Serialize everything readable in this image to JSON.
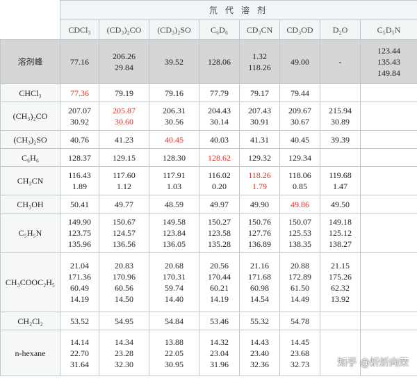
{
  "banner": "氘 代 溶 剂",
  "columns": [
    "CDCl₃",
    "(CD₃)₂CO",
    "(CD₃)₂SO",
    "C₆D₆",
    "CD₃CN",
    "CD₃OD",
    "D₂O",
    "C₅D₅N"
  ],
  "peak_row": {
    "label": "溶剂峰",
    "cells": [
      [
        "77.16"
      ],
      [
        "206.26",
        "29.84"
      ],
      [
        "39.52"
      ],
      [
        "128.06"
      ],
      [
        "1.32",
        "118.26"
      ],
      [
        "49.00"
      ],
      [
        "-"
      ],
      [
        "123.44",
        "135.43",
        "149.84"
      ]
    ]
  },
  "rows": [
    {
      "label": "CHCl₃",
      "self": 0,
      "cells": [
        [
          "77.36"
        ],
        [
          "79.19"
        ],
        [
          "79.16"
        ],
        [
          "77.79"
        ],
        [
          "79.17"
        ],
        [
          "79.44"
        ],
        [],
        []
      ]
    },
    {
      "label": "(CH₃)₂CO",
      "self": 1,
      "cells": [
        [
          "207.07",
          "30.92"
        ],
        [
          "205.87",
          "30.60"
        ],
        [
          "206.31",
          "30.56"
        ],
        [
          "204.43",
          "30.14"
        ],
        [
          "207.43",
          "30.91"
        ],
        [
          "209.67",
          "30.67"
        ],
        [
          "215.94",
          "30.89"
        ],
        []
      ]
    },
    {
      "label": "(CH₃)₂SO",
      "self": 2,
      "cells": [
        [
          "40.76"
        ],
        [
          "41.23"
        ],
        [
          "40.45"
        ],
        [
          "40.03"
        ],
        [
          "41.31"
        ],
        [
          "40.45"
        ],
        [
          "39.39"
        ],
        []
      ]
    },
    {
      "label": "C₆H₆",
      "self": 3,
      "cells": [
        [
          "128.37"
        ],
        [
          "129.15"
        ],
        [
          "128.30"
        ],
        [
          "128.62"
        ],
        [
          "129.32"
        ],
        [
          "129.34"
        ],
        [],
        []
      ]
    },
    {
      "label": "CH₃CN",
      "self": 4,
      "cells": [
        [
          "116.43",
          "1.89"
        ],
        [
          "117.60",
          "1.12"
        ],
        [
          "117.91",
          "1.03"
        ],
        [
          "116.02",
          "0.20"
        ],
        [
          "118.26",
          "1.79"
        ],
        [
          "118.06",
          "0.85"
        ],
        [
          "119.68",
          "1.47"
        ],
        []
      ]
    },
    {
      "label": "CH₃OH",
      "self": 5,
      "cells": [
        [
          "50.41"
        ],
        [
          "49.77"
        ],
        [
          "48.59"
        ],
        [
          "49.97"
        ],
        [
          "49.90"
        ],
        [
          "49.86"
        ],
        [
          "49.50"
        ],
        []
      ]
    },
    {
      "label": "C₅H₅N",
      "self": -1,
      "cells": [
        [
          "149.90",
          "123.75",
          "135.96"
        ],
        [
          "150.67",
          "124.57",
          "136.56"
        ],
        [
          "149.58",
          "123.84",
          "136.05"
        ],
        [
          "150.27",
          "123.58",
          "135.28"
        ],
        [
          "150.76",
          "127.76",
          "136.89"
        ],
        [
          "150.07",
          "125.53",
          "138.35"
        ],
        [
          "149.18",
          "125.12",
          "138.27"
        ],
        []
      ]
    },
    {
      "label": "CH₃COOC₂H₅",
      "self": -1,
      "cells": [
        [
          "21.04",
          "171.36",
          "60.49",
          "14.19"
        ],
        [
          "20.83",
          "170.96",
          "60.56",
          "14.50"
        ],
        [
          "20.68",
          "170.31",
          "59.74",
          "14.40"
        ],
        [
          "20.56",
          "170.44",
          "60.21",
          "14.19"
        ],
        [
          "21.16",
          "171.68",
          "60.98",
          "14.54"
        ],
        [
          "20.88",
          "172.89",
          "61.50",
          "14.49"
        ],
        [
          "21.15",
          "175.26",
          "62.32",
          "13.92"
        ],
        []
      ]
    },
    {
      "label": "CH₂Cl₂",
      "self": -1,
      "cells": [
        [
          "53.52"
        ],
        [
          "54.95"
        ],
        [
          "54.84"
        ],
        [
          "53.46"
        ],
        [
          "55.32"
        ],
        [
          "54.78"
        ],
        [],
        []
      ]
    },
    {
      "label": "n-hexane",
      "self": -1,
      "cells": [
        [
          "14.14",
          "22.70",
          "31.64"
        ],
        [
          "14.34",
          "23.28",
          "32.30"
        ],
        [
          "13.88",
          "22.05",
          "30.95"
        ],
        [
          "14.32",
          "23.04",
          "31.96"
        ],
        [
          "14.43",
          "23.40",
          "32.36"
        ],
        [
          "14.45",
          "23.68",
          "32.73"
        ],
        [],
        []
      ]
    }
  ],
  "watermark": "知乎 @炘炘向荣",
  "colors": {
    "self_value": "#e0302a",
    "peak_bg": "#d6d6d6",
    "header_bg": "#f2f5f6"
  }
}
